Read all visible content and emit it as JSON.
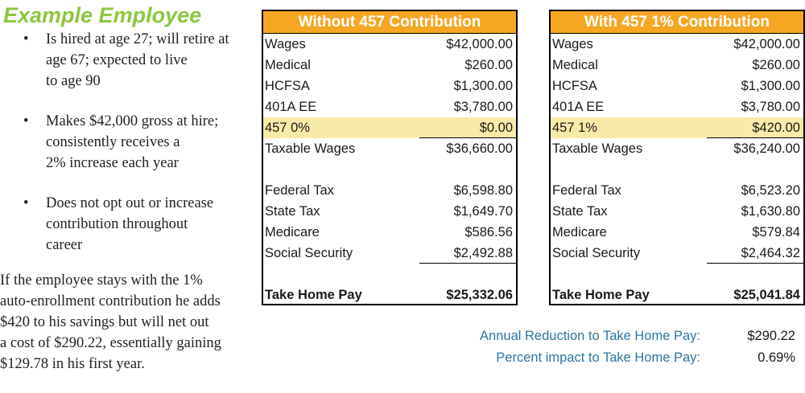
{
  "title": "Example Employee",
  "bullets": [
    {
      "lines": [
        "Is hired at age 27; will retire at",
        "age 67; expected to live",
        "to age 90"
      ]
    },
    {
      "lines": [
        "Makes $42,000 gross at hire;",
        "consistently receives a",
        "2% increase each year"
      ]
    },
    {
      "lines": [
        "Does not opt out or increase",
        "contribution throughout",
        "career"
      ]
    }
  ],
  "bullet_symbol": "•",
  "summary_lines": [
    "If the employee stays with the 1%",
    "auto-enrollment contribution he adds",
    "$420 to his savings but will net out",
    "a cost of $290.22, essentially gaining",
    "$129.78 in his first year."
  ],
  "tables": [
    {
      "header": "Without 457 Contribution",
      "rows": [
        {
          "label": "Wages",
          "value": "$42,000.00"
        },
        {
          "label": "Medical",
          "value": "$260.00"
        },
        {
          "label": "HCFSA",
          "value": "$1,300.00"
        },
        {
          "label": "401A EE",
          "value": "$3,780.00"
        },
        {
          "label": "457 0%",
          "value": "$0.00"
        },
        {
          "label": "Taxable Wages",
          "value": "$36,660.00"
        },
        {
          "label": "Federal Tax",
          "value": "$6,598.80"
        },
        {
          "label": "State Tax",
          "value": "$1,649.70"
        },
        {
          "label": "Medicare",
          "value": "$586.56"
        },
        {
          "label": "Social Security",
          "value": "$2,492.88"
        },
        {
          "label": "Take Home Pay",
          "value": "$25,332.06"
        }
      ]
    },
    {
      "header": "With 457 1% Contribution",
      "rows": [
        {
          "label": "Wages",
          "value": "$42,000.00"
        },
        {
          "label": "Medical",
          "value": "$260.00"
        },
        {
          "label": "HCFSA",
          "value": "$1,300.00"
        },
        {
          "label": "401A EE",
          "value": "$3,780.00"
        },
        {
          "label": "457 1%",
          "value": "$420.00"
        },
        {
          "label": "Taxable Wages",
          "value": "$36,240.00"
        },
        {
          "label": "Federal Tax",
          "value": "$6,523.20"
        },
        {
          "label": "State Tax",
          "value": "$1,630.80"
        },
        {
          "label": "Medicare",
          "value": "$579.84"
        },
        {
          "label": "Social Security",
          "value": "$2,464.32"
        },
        {
          "label": "Take Home Pay",
          "value": "$25,041.84"
        }
      ]
    }
  ],
  "footer": [
    {
      "label": "Annual Reduction to Take Home Pay:",
      "value": "$290.22"
    },
    {
      "label": "Percent impact to Take Home Pay:",
      "value": "0.69%"
    }
  ],
  "colors": {
    "title": "#8cc63f",
    "header_bg": "#f5a623",
    "highlight_bg": "#f8eaa8",
    "footer_label": "#2e75a6"
  }
}
